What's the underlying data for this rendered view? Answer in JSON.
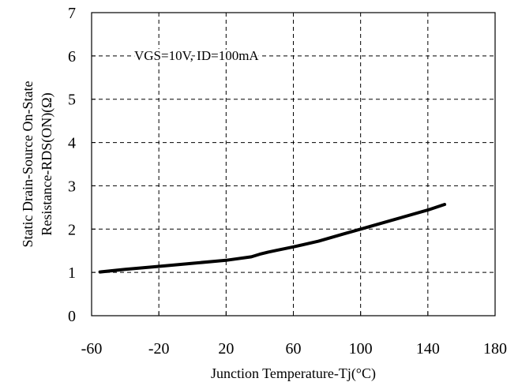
{
  "chart_data": {
    "type": "line",
    "title": "",
    "xlabel": "Junction Temperature-Tj(°C)",
    "ylabel_lines": [
      "Static Drain-Source On-State",
      "Resistance-RDS(ON)(Ω)"
    ],
    "annotation": "VGS=10V, ID=100mA",
    "xlim": [
      -60,
      180
    ],
    "ylim": [
      0,
      7
    ],
    "xticks": [
      "-60",
      "-20",
      "20",
      "60",
      "100",
      "140",
      "180"
    ],
    "yticks": [
      "0",
      "1",
      "2",
      "3",
      "4",
      "5",
      "6",
      "7"
    ],
    "grid": true,
    "series": [
      {
        "x": [
          -55,
          -40,
          -20,
          0,
          20,
          35,
          40,
          45,
          50,
          60,
          75,
          90,
          100,
          120,
          140,
          150
        ],
        "y": [
          1.01,
          1.07,
          1.14,
          1.21,
          1.28,
          1.36,
          1.42,
          1.47,
          1.51,
          1.59,
          1.72,
          1.89,
          2.0,
          2.22,
          2.44,
          2.57
        ]
      }
    ]
  }
}
